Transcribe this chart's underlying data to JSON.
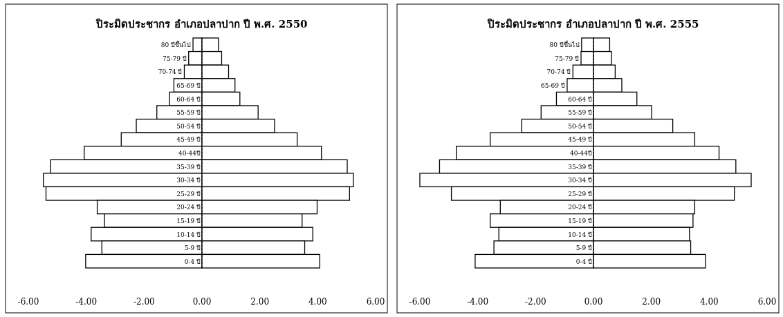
{
  "chart_data": [
    {
      "type": "bar",
      "orientation": "horizontal",
      "stacked": true,
      "title": "ปิระมิดประชากร อำเภอปลาปาก ปี พ.ศ. 2550",
      "categories": [
        "80 ปีขึ้นไป",
        "75-79 ปี",
        "70-74 ปี",
        "65-69 ปี",
        "60-64 ปี",
        "55-59 ปี",
        "50-54 ปี",
        "45-49 ปี",
        "40-44ปี",
        "35-39 ปี",
        "30-34 ปี",
        "25-29 ปี",
        "20-24 ปี",
        "15-19 ปี",
        "10-14 ปี",
        "5-9 ปี",
        "0-4 ปี"
      ],
      "series": [
        {
          "color": "#ffffff",
          "values": [
            -0.31,
            -0.46,
            -0.61,
            -0.97,
            -1.12,
            -1.56,
            -2.27,
            -2.79,
            -4.07,
            -5.23,
            -5.48,
            -5.39,
            -3.62,
            -3.37,
            -3.83,
            -3.46,
            -4.02
          ]
        },
        {
          "color": "#ffffff",
          "values": [
            0.57,
            0.68,
            0.92,
            1.14,
            1.31,
            1.94,
            2.51,
            3.29,
            4.13,
            5.02,
            5.23,
            5.1,
            3.98,
            3.46,
            3.83,
            3.55,
            4.07
          ]
        }
      ],
      "xlim": [
        -6,
        6
      ],
      "xticks": [
        {
          "value": -6,
          "label": "-6.00"
        },
        {
          "value": -4,
          "label": "-4.00"
        },
        {
          "value": -2,
          "label": "-2.00"
        },
        {
          "value": 0,
          "label": "0.00"
        },
        {
          "value": 2,
          "label": "2.00"
        },
        {
          "value": 4,
          "label": "4.00"
        },
        {
          "value": 6,
          "label": "6.00"
        }
      ]
    },
    {
      "type": "bar",
      "orientation": "horizontal",
      "stacked": true,
      "title": "ปิระมิดประชากร อำเภอปลาปาก ปี พ.ศ. 2555",
      "categories": [
        "80 ปีขึ้นไป",
        "75-79 ปี",
        "70-74 ปี",
        "65-69 ปี",
        "60-64 ปี",
        "55-59 ปี",
        "50-54 ปี",
        "45-49 ปี",
        "40-44ปี",
        "35-39 ปี",
        "30-34 ปี",
        "25-29 ปี",
        "20-24 ปี",
        "15-19 ปี",
        "10-14 ปี",
        "5-9 ปี",
        "0-4 ปี"
      ],
      "series": [
        {
          "color": "#ffffff",
          "values": [
            -0.41,
            -0.43,
            -0.71,
            -0.91,
            -1.28,
            -1.81,
            -2.48,
            -3.57,
            -4.74,
            -5.32,
            -6.0,
            -4.91,
            -3.22,
            -3.57,
            -3.27,
            -3.44,
            -4.09
          ]
        },
        {
          "color": "#ffffff",
          "values": [
            0.56,
            0.62,
            0.75,
            0.98,
            1.5,
            2.01,
            2.74,
            3.5,
            4.34,
            4.92,
            5.45,
            4.87,
            3.5,
            3.44,
            3.32,
            3.36,
            3.87
          ]
        }
      ],
      "xlim": [
        -6,
        6
      ],
      "xticks": [
        {
          "value": -6,
          "label": "-6.00"
        },
        {
          "value": -4,
          "label": "-4.00"
        },
        {
          "value": -2,
          "label": "-2.00"
        },
        {
          "value": 0,
          "label": "0.00"
        },
        {
          "value": 2,
          "label": "2.00"
        },
        {
          "value": 4,
          "label": "4.00"
        },
        {
          "value": 6,
          "label": "6.00"
        }
      ]
    }
  ]
}
